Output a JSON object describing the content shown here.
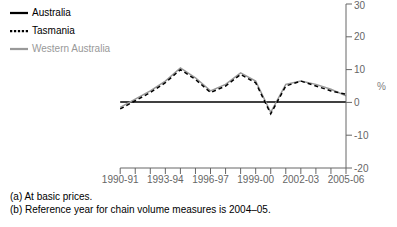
{
  "chart_data": {
    "type": "line",
    "y_label": "%",
    "categories": [
      "1990-91",
      null,
      null,
      "1993-94",
      null,
      null,
      "1996-97",
      null,
      null,
      "1999-00",
      null,
      null,
      "2002-03",
      null,
      null,
      "2005-06"
    ],
    "series": [
      {
        "name": "Australia",
        "color": "#000000",
        "line_style": "solid",
        "values": [
          0.1,
          0.1,
          0.1,
          0.1,
          0.1,
          0.1,
          0.1,
          0.1,
          0.1,
          0.1,
          0.1,
          0.1,
          0.1,
          0.1,
          0.1,
          0.1
        ]
      },
      {
        "name": "Western Australia",
        "color": "#999999",
        "line_style": "solid",
        "values": [
          -1.5,
          1.0,
          3.5,
          6.5,
          10.5,
          7.5,
          3.5,
          5.5,
          9.0,
          6.5,
          -3.0,
          5.5,
          6.5,
          5.5,
          4.0,
          2.0
        ]
      },
      {
        "name": "Tasmania",
        "color": "#000000",
        "line_style": "dashed",
        "values": [
          -2.0,
          0.5,
          3.0,
          6.0,
          10.0,
          7.0,
          3.0,
          5.0,
          8.5,
          6.0,
          -3.5,
          5.0,
          6.5,
          5.0,
          3.5,
          2.5
        ]
      }
    ],
    "ylim": [
      -20,
      30
    ],
    "yticks": [
      -20,
      -10,
      0,
      10,
      20,
      30
    ],
    "grid": false,
    "legend": "upper left",
    "annotations": [
      "(a) At basic prices.",
      "(b) Reference year for chain volume measures is 2004–05."
    ]
  }
}
